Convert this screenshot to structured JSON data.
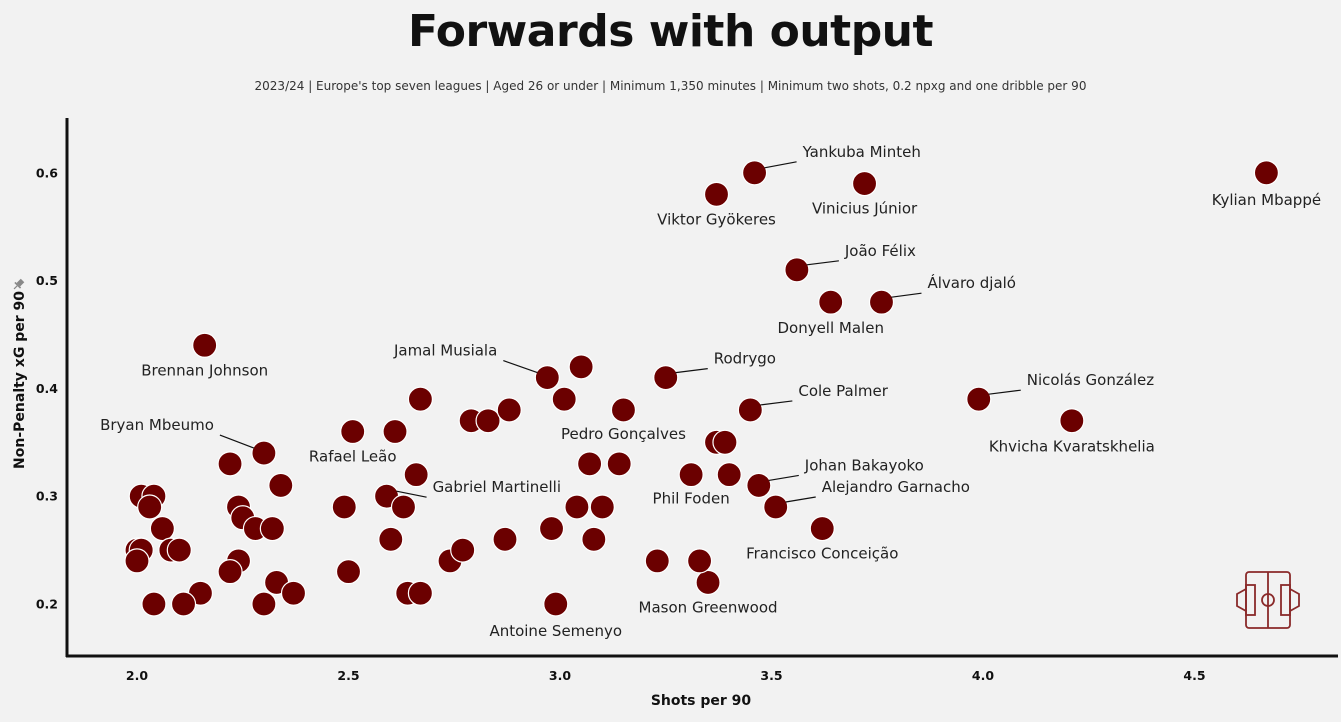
{
  "chart_data": {
    "type": "scatter",
    "title": "Forwards with output",
    "subtitle": "2023/24 | Europe's top seven leagues | Aged 26 or under | Minimum 1,350 minutes | Minimum two shots, 0.2 npxg and one dribble per 90",
    "xlabel": "Shots per 90",
    "ylabel": "Non-Penalty xG per 90",
    "xlim": [
      1.83,
      4.86
    ],
    "ylim": [
      0.153,
      0.65
    ],
    "xticks": [
      "2.0",
      "2.5",
      "3.0",
      "3.5",
      "4.0",
      "4.5"
    ],
    "yticks": [
      "0.2",
      "0.3",
      "0.4",
      "0.5",
      "0.6"
    ],
    "grid": false,
    "colors": {
      "point": "#6b0000",
      "point_edge": "#ffffff",
      "background": "#f2f2f2"
    },
    "logo_icon": "football-pitch-icon",
    "points": [
      {
        "x": 3.46,
        "y": 0.6,
        "label": "Yankuba Minteh"
      },
      {
        "x": 3.37,
        "y": 0.58,
        "label": "Viktor Gyökeres"
      },
      {
        "x": 3.72,
        "y": 0.59,
        "label": "Vinicius Júnior"
      },
      {
        "x": 4.67,
        "y": 0.6,
        "label": "Kylian Mbappé"
      },
      {
        "x": 3.56,
        "y": 0.51,
        "label": "João Félix"
      },
      {
        "x": 3.76,
        "y": 0.48,
        "label": "Álvaro djaló"
      },
      {
        "x": 3.64,
        "y": 0.48,
        "label": "Donyell Malen"
      },
      {
        "x": 2.16,
        "y": 0.44,
        "label": "Brennan Johnson"
      },
      {
        "x": 2.97,
        "y": 0.41,
        "label": "Jamal Musiala"
      },
      {
        "x": 3.25,
        "y": 0.41,
        "label": "Rodrygo"
      },
      {
        "x": 3.45,
        "y": 0.38,
        "label": "Cole Palmer"
      },
      {
        "x": 3.99,
        "y": 0.39,
        "label": "Nicolás González"
      },
      {
        "x": 4.21,
        "y": 0.37,
        "label": "Khvicha Kvaratskhelia"
      },
      {
        "x": 2.3,
        "y": 0.34,
        "label": "Bryan Mbeumo"
      },
      {
        "x": 2.51,
        "y": 0.36,
        "label": "Rafael Leão"
      },
      {
        "x": 3.15,
        "y": 0.38,
        "label": "Pedro Gonçalves"
      },
      {
        "x": 2.59,
        "y": 0.3,
        "label": "Gabriel Martinelli"
      },
      {
        "x": 3.47,
        "y": 0.31,
        "label": "Johan Bakayoko"
      },
      {
        "x": 3.31,
        "y": 0.32,
        "label": "Phil Foden"
      },
      {
        "x": 3.51,
        "y": 0.29,
        "label": "Alejandro Garnacho"
      },
      {
        "x": 3.62,
        "y": 0.27,
        "label": "Francisco Conceição"
      },
      {
        "x": 3.35,
        "y": 0.22,
        "label": "Mason Greenwood"
      },
      {
        "x": 2.99,
        "y": 0.2,
        "label": "Antoine Semenyo"
      },
      {
        "x": 3.05,
        "y": 0.42
      },
      {
        "x": 3.01,
        "y": 0.39
      },
      {
        "x": 2.67,
        "y": 0.39
      },
      {
        "x": 2.79,
        "y": 0.37
      },
      {
        "x": 2.83,
        "y": 0.37
      },
      {
        "x": 2.88,
        "y": 0.38
      },
      {
        "x": 2.61,
        "y": 0.36
      },
      {
        "x": 2.66,
        "y": 0.32
      },
      {
        "x": 2.63,
        "y": 0.29
      },
      {
        "x": 2.6,
        "y": 0.26
      },
      {
        "x": 2.49,
        "y": 0.29
      },
      {
        "x": 2.5,
        "y": 0.23
      },
      {
        "x": 2.64,
        "y": 0.21
      },
      {
        "x": 2.67,
        "y": 0.21
      },
      {
        "x": 2.74,
        "y": 0.24
      },
      {
        "x": 2.77,
        "y": 0.25
      },
      {
        "x": 2.87,
        "y": 0.26
      },
      {
        "x": 2.98,
        "y": 0.27
      },
      {
        "x": 3.04,
        "y": 0.29
      },
      {
        "x": 3.07,
        "y": 0.33
      },
      {
        "x": 3.14,
        "y": 0.33
      },
      {
        "x": 3.1,
        "y": 0.29
      },
      {
        "x": 3.08,
        "y": 0.26
      },
      {
        "x": 3.23,
        "y": 0.24
      },
      {
        "x": 3.33,
        "y": 0.24
      },
      {
        "x": 3.37,
        "y": 0.35
      },
      {
        "x": 3.39,
        "y": 0.35
      },
      {
        "x": 3.4,
        "y": 0.32
      },
      {
        "x": 2.22,
        "y": 0.33
      },
      {
        "x": 2.34,
        "y": 0.31
      },
      {
        "x": 2.24,
        "y": 0.29
      },
      {
        "x": 2.25,
        "y": 0.28
      },
      {
        "x": 2.28,
        "y": 0.27
      },
      {
        "x": 2.32,
        "y": 0.27
      },
      {
        "x": 2.24,
        "y": 0.24
      },
      {
        "x": 2.22,
        "y": 0.23
      },
      {
        "x": 2.33,
        "y": 0.22
      },
      {
        "x": 2.37,
        "y": 0.21
      },
      {
        "x": 2.3,
        "y": 0.2
      },
      {
        "x": 2.15,
        "y": 0.21
      },
      {
        "x": 2.11,
        "y": 0.2
      },
      {
        "x": 2.04,
        "y": 0.2
      },
      {
        "x": 2.01,
        "y": 0.3
      },
      {
        "x": 2.04,
        "y": 0.3
      },
      {
        "x": 2.03,
        "y": 0.29
      },
      {
        "x": 2.06,
        "y": 0.27
      },
      {
        "x": 2.0,
        "y": 0.25
      },
      {
        "x": 2.01,
        "y": 0.25
      },
      {
        "x": 2.0,
        "y": 0.24
      },
      {
        "x": 2.08,
        "y": 0.25
      },
      {
        "x": 2.1,
        "y": 0.25
      }
    ]
  }
}
